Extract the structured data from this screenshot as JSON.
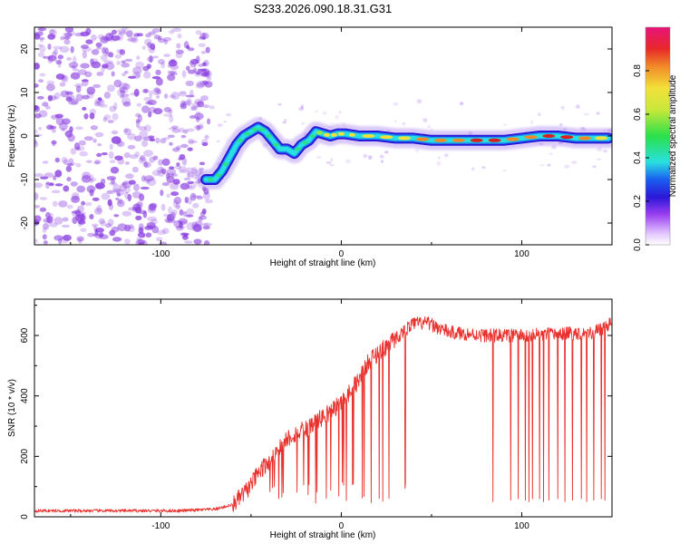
{
  "title": "S233.2026.090.18.31.G31",
  "colors": {
    "line": "#e8302c",
    "axis": "#000000",
    "noise": "#8a3fe0",
    "ridge_core": "#d81e1e",
    "ridge_mid": "#29e0e0",
    "ridge_edge": "#2a18d8"
  },
  "chart_data": [
    {
      "type": "heatmap",
      "title": "S233.2026.090.18.31.G31",
      "xlabel": "Height of straight line (km)",
      "ylabel": "Frequency (Hz)",
      "xlim": [
        -170,
        150
      ],
      "ylim": [
        -25,
        25
      ],
      "x_ticks": [
        -100,
        0,
        100
      ],
      "y_ticks": [
        -20,
        -10,
        0,
        10,
        20
      ],
      "colorbar": {
        "label": "Normalized spectral amplitude",
        "range": [
          0,
          1
        ],
        "ticks": [
          "0.0",
          "0.2",
          "0.4",
          "0.6",
          "0.8"
        ]
      },
      "ridge": {
        "x": [
          -75,
          -70,
          -66,
          -62,
          -58,
          -54,
          -50,
          -46,
          -42,
          -38,
          -34,
          -30,
          -26,
          -22,
          -18,
          -14,
          -10,
          -6,
          -2,
          2,
          10,
          20,
          30,
          40,
          50,
          60,
          70,
          80,
          90,
          100,
          110,
          120,
          130,
          140,
          148
        ],
        "y": [
          -10,
          -10,
          -8,
          -5,
          -2,
          0,
          1,
          2,
          1,
          -1,
          -3,
          -3,
          -4,
          -2,
          -1,
          1,
          0.5,
          0,
          0.5,
          0.5,
          0,
          0,
          -0.5,
          -0.5,
          -1,
          -1,
          -1,
          -1,
          -1,
          -0.5,
          0,
          0,
          -0.5,
          -0.5,
          -0.5
        ],
        "amplitude": [
          0.55,
          0.6,
          0.55,
          0.5,
          0.5,
          0.55,
          0.6,
          0.55,
          0.5,
          0.55,
          0.5,
          0.45,
          0.5,
          0.55,
          0.6,
          0.6,
          0.7,
          0.75,
          0.75,
          0.7,
          0.75,
          0.8,
          0.8,
          0.8,
          0.85,
          0.85,
          0.9,
          0.95,
          0.85,
          0.8,
          0.95,
          0.95,
          0.85,
          0.8,
          0.75
        ]
      },
      "noise_region": {
        "x_range": [
          -170,
          -70
        ],
        "amplitude_range": [
          0.05,
          0.3
        ]
      }
    },
    {
      "type": "line",
      "xlabel": "Height of straight line (km)",
      "ylabel": "SNR (10 * v/v)",
      "xlim": [
        -170,
        150
      ],
      "ylim": [
        0,
        720
      ],
      "x_ticks": [
        -100,
        0,
        100
      ],
      "y_ticks": [
        0,
        200,
        400,
        600
      ],
      "series": [
        {
          "name": "SNR",
          "trend_x": [
            -170,
            -90,
            -70,
            -60,
            -52,
            -45,
            -38,
            -30,
            -20,
            -10,
            0,
            8,
            16,
            24,
            32,
            40,
            48,
            60,
            80,
            100,
            120,
            140,
            150
          ],
          "trend_y": [
            20,
            20,
            25,
            40,
            90,
            150,
            200,
            260,
            290,
            330,
            380,
            440,
            520,
            560,
            600,
            640,
            640,
            610,
            600,
            600,
            605,
            610,
            640
          ],
          "dropouts_x": [
            84,
            94,
            98,
            102,
            104,
            106,
            110,
            112,
            115,
            120,
            124,
            128,
            133,
            136,
            140,
            144,
            146
          ],
          "dropouts_y": [
            50,
            55,
            60,
            55,
            50,
            60,
            60,
            50,
            55,
            60,
            50,
            55,
            60,
            50,
            55,
            60,
            55
          ]
        }
      ]
    }
  ]
}
